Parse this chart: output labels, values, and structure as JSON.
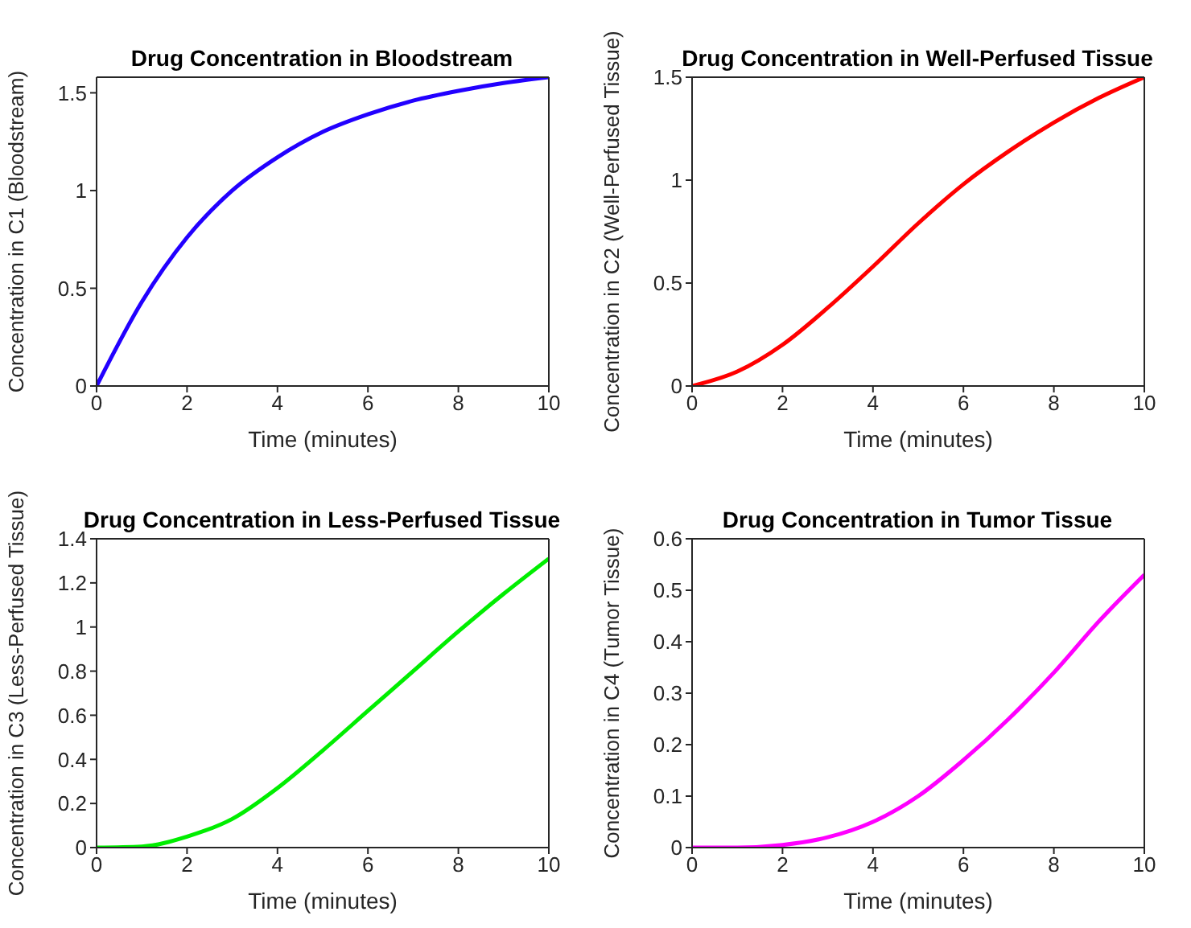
{
  "chart_data": [
    {
      "type": "line",
      "title": "Drug Concentration in Bloodstream",
      "xlabel": "Time (minutes)",
      "ylabel": "Concentration in C1 (Bloodstream)",
      "x": [
        0,
        1,
        2,
        3,
        4,
        5,
        6,
        7,
        8,
        9,
        10
      ],
      "xlim": [
        0,
        10
      ],
      "xticks": [
        0,
        2,
        4,
        6,
        8,
        10
      ],
      "ylim": [
        0,
        1.58
      ],
      "yticks": [
        0,
        0.5,
        1,
        1.5
      ],
      "series": [
        {
          "color": "#2200ff",
          "values": [
            0,
            0.43,
            0.76,
            1.0,
            1.17,
            1.3,
            1.39,
            1.46,
            1.51,
            1.55,
            1.58
          ]
        }
      ]
    },
    {
      "type": "line",
      "title": "Drug Concentration in Well-Perfused Tissue",
      "xlabel": "Time (minutes)",
      "ylabel": "Concentration in C2 (Well-Perfused Tissue)",
      "x": [
        0,
        1,
        2,
        3,
        4,
        5,
        6,
        7,
        8,
        9,
        10
      ],
      "xlim": [
        0,
        10
      ],
      "xticks": [
        0,
        2,
        4,
        6,
        8,
        10
      ],
      "ylim": [
        0,
        1.5
      ],
      "yticks": [
        0,
        0.5,
        1,
        1.5
      ],
      "series": [
        {
          "color": "#ff0000",
          "values": [
            0,
            0.07,
            0.2,
            0.38,
            0.58,
            0.79,
            0.98,
            1.14,
            1.28,
            1.4,
            1.5
          ]
        }
      ]
    },
    {
      "type": "line",
      "title": "Drug Concentration in Less-Perfused Tissue",
      "xlabel": "Time (minutes)",
      "ylabel": "Concentration in C3 (Less-Perfused Tissue)",
      "x": [
        0,
        1,
        2,
        3,
        4,
        5,
        6,
        7,
        8,
        9,
        10
      ],
      "xlim": [
        0,
        10
      ],
      "xticks": [
        0,
        2,
        4,
        6,
        8,
        10
      ],
      "ylim": [
        0,
        1.4
      ],
      "yticks": [
        0,
        0.2,
        0.4,
        0.6,
        0.8,
        1,
        1.2,
        1.4
      ],
      "series": [
        {
          "color": "#00ee00",
          "values": [
            0,
            0.005,
            0.05,
            0.13,
            0.27,
            0.44,
            0.62,
            0.8,
            0.98,
            1.15,
            1.31
          ]
        }
      ]
    },
    {
      "type": "line",
      "title": "Drug Concentration in Tumor Tissue",
      "xlabel": "Time (minutes)",
      "ylabel": "Concentration in C4 (Tumor Tissue)",
      "x": [
        0,
        1,
        2,
        3,
        4,
        5,
        6,
        7,
        8,
        9,
        10
      ],
      "xlim": [
        0,
        10
      ],
      "xticks": [
        0,
        2,
        4,
        6,
        8,
        10
      ],
      "ylim": [
        0,
        0.6
      ],
      "yticks": [
        0,
        0.1,
        0.2,
        0.3,
        0.4,
        0.5,
        0.6
      ],
      "series": [
        {
          "color": "#ff00ff",
          "values": [
            0,
            0,
            0.005,
            0.02,
            0.05,
            0.1,
            0.17,
            0.25,
            0.34,
            0.44,
            0.53
          ]
        }
      ]
    }
  ]
}
